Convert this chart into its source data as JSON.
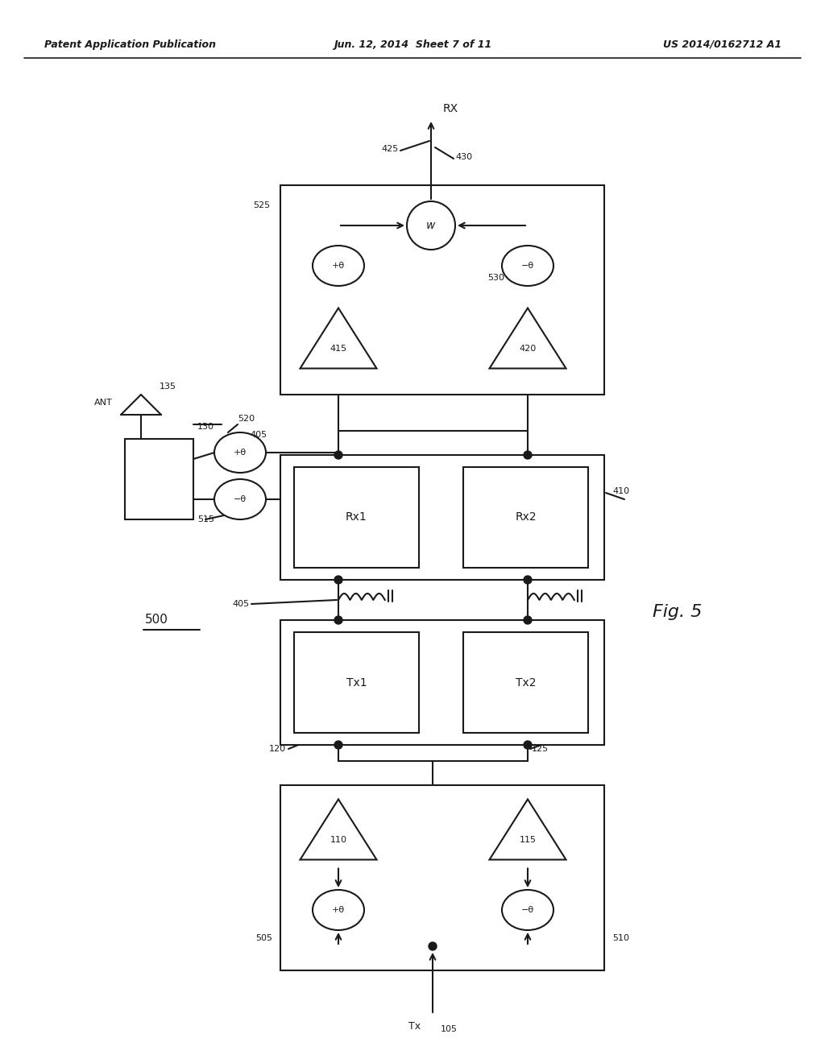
{
  "title_left": "Patent Application Publication",
  "title_center": "Jun. 12, 2014  Sheet 7 of 11",
  "title_right": "US 2014/0162712 A1",
  "background_color": "#ffffff",
  "line_color": "#1a1a1a"
}
